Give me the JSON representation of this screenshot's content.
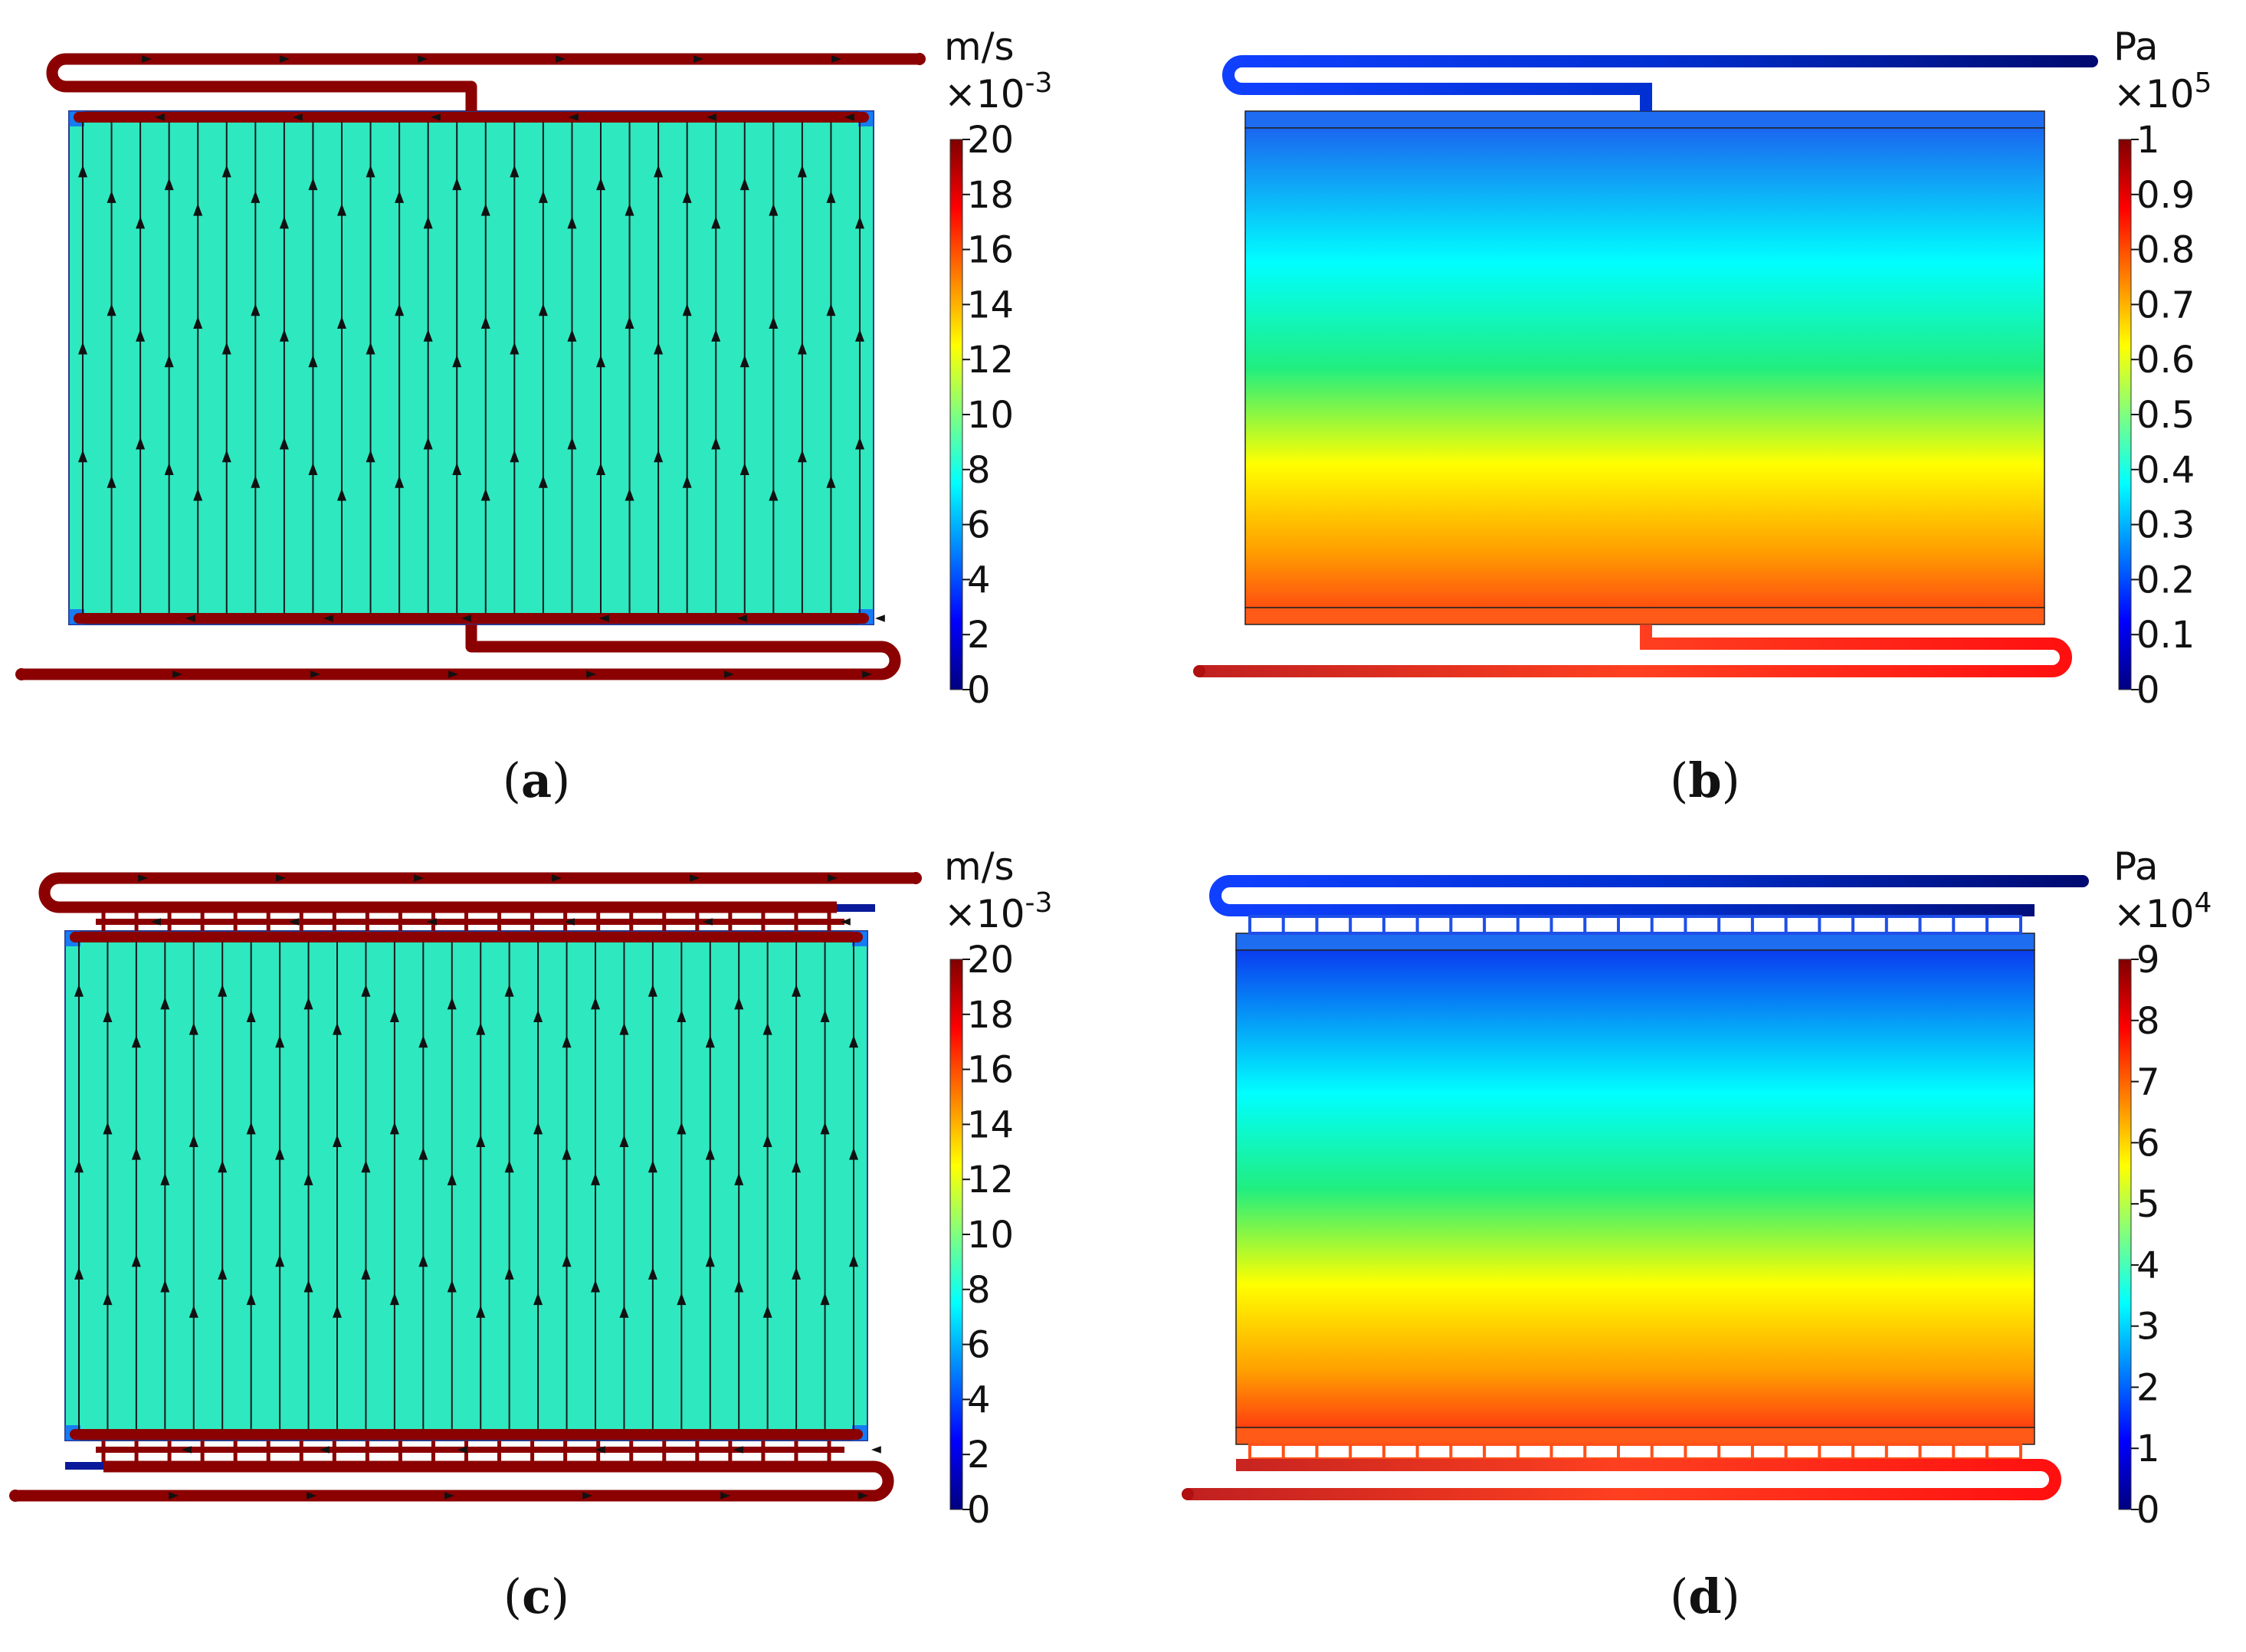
{
  "panels": [
    {
      "id": "a",
      "kind": "velocity",
      "caption_open": "(",
      "caption_letter": "a",
      "caption_close": ")",
      "unit": "m/s",
      "multiplier": "×10",
      "exponent": "-3",
      "colorbar_ticks": [
        "20",
        "18",
        "16",
        "14",
        "12",
        "10",
        "8",
        "6",
        "4",
        "2",
        "0"
      ],
      "manifold": "single"
    },
    {
      "id": "b",
      "kind": "pressure",
      "caption_open": "(",
      "caption_letter": "b",
      "caption_close": ")",
      "unit": "Pa",
      "multiplier": "×10",
      "exponent": "5",
      "colorbar_ticks": [
        "1",
        "0.9",
        "0.8",
        "0.7",
        "0.6",
        "0.5",
        "0.4",
        "0.3",
        "0.2",
        "0.1",
        "0"
      ],
      "manifold": "single"
    },
    {
      "id": "c",
      "kind": "velocity",
      "caption_open": "(",
      "caption_letter": "c",
      "caption_close": ")",
      "unit": "m/s",
      "multiplier": "×10",
      "exponent": "-3",
      "colorbar_ticks": [
        "20",
        "18",
        "16",
        "14",
        "12",
        "10",
        "8",
        "6",
        "4",
        "2",
        "0"
      ],
      "manifold": "multi"
    },
    {
      "id": "d",
      "kind": "pressure",
      "caption_open": "(",
      "caption_letter": "d",
      "caption_close": ")",
      "unit": "Pa",
      "multiplier": "×10",
      "exponent": "4",
      "colorbar_ticks": [
        "9",
        "8",
        "7",
        "6",
        "5",
        "4",
        "3",
        "2",
        "1",
        "0"
      ],
      "manifold": "multi"
    }
  ],
  "colors": {
    "fluid_velocity": "#2ee8c0",
    "pipe_dark_red": "#8b0000",
    "jet": [
      "#00007f",
      "#0000ff",
      "#007fff",
      "#00ffff",
      "#7fff7f",
      "#ffff00",
      "#ff7f00",
      "#ff0000",
      "#7f0000"
    ]
  }
}
